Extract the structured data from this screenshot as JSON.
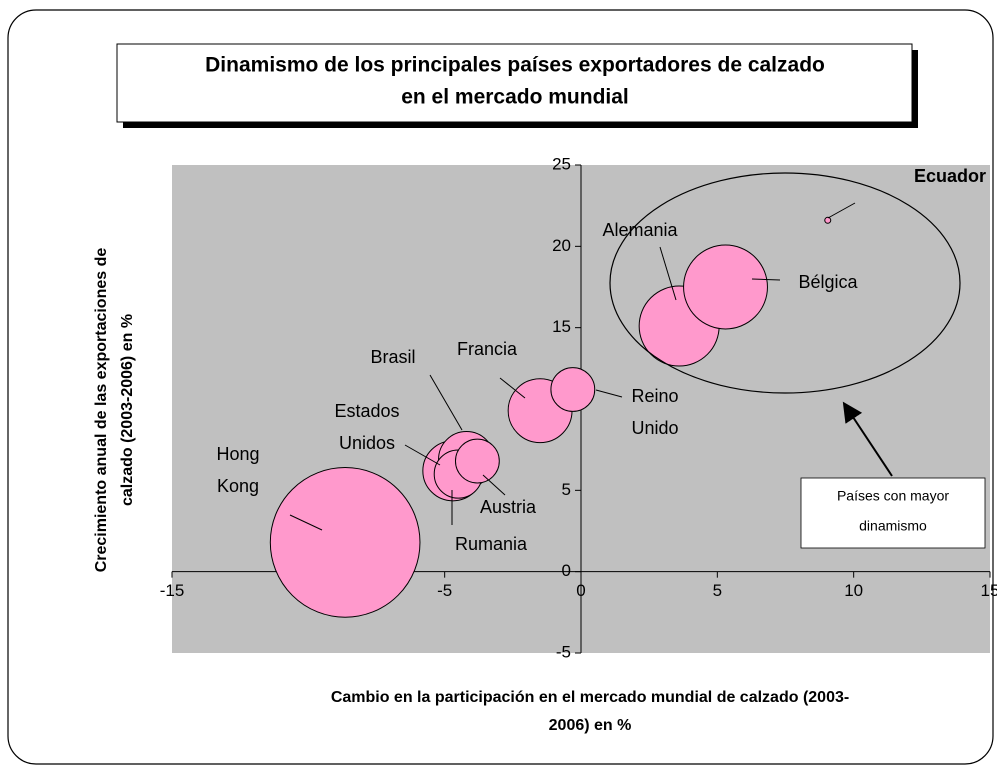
{
  "chart_data": {
    "type": "bubble",
    "title": [
      "Dinamismo de los principales países exportadores de calzado",
      "en el mercado mundial"
    ],
    "x_label": [
      "Cambio en la participación en el mercado mundial de calzado (2003-",
      "2006) en %"
    ],
    "y_label": [
      "Crecimiento anual de las exportaciones de",
      "calzado (2003-2006) en %"
    ],
    "categories": [
      "Hong Kong",
      "Estados Unidos",
      "Brasil",
      "Rumania",
      "Austria",
      "Francia",
      "Reino Unido",
      "Alemania",
      "Bélgica",
      "Ecuador"
    ],
    "x": [
      -8.65,
      -4.7,
      -4.2,
      -4.5,
      -3.8,
      -1.5,
      -0.3,
      3.6,
      5.3,
      9.05
    ],
    "values": [
      1.8,
      6.2,
      6.9,
      6.0,
      6.8,
      9.9,
      11.2,
      15.1,
      17.5,
      21.6
    ],
    "sizes": [
      56,
      9,
      7.8,
      5.8,
      4.8,
      10.2,
      4.8,
      16,
      17.6,
      0.09
    ],
    "color": "#ff99cc",
    "xlim": [
      -15,
      15
    ],
    "xticks": [
      -15,
      -10,
      -5,
      0,
      5,
      10,
      15
    ],
    "ylim": [
      -5,
      25
    ],
    "yticks": [
      -5,
      0,
      5,
      10,
      15,
      20,
      25
    ],
    "annotation": [
      "Países con mayor",
      "dinamismo"
    ]
  }
}
